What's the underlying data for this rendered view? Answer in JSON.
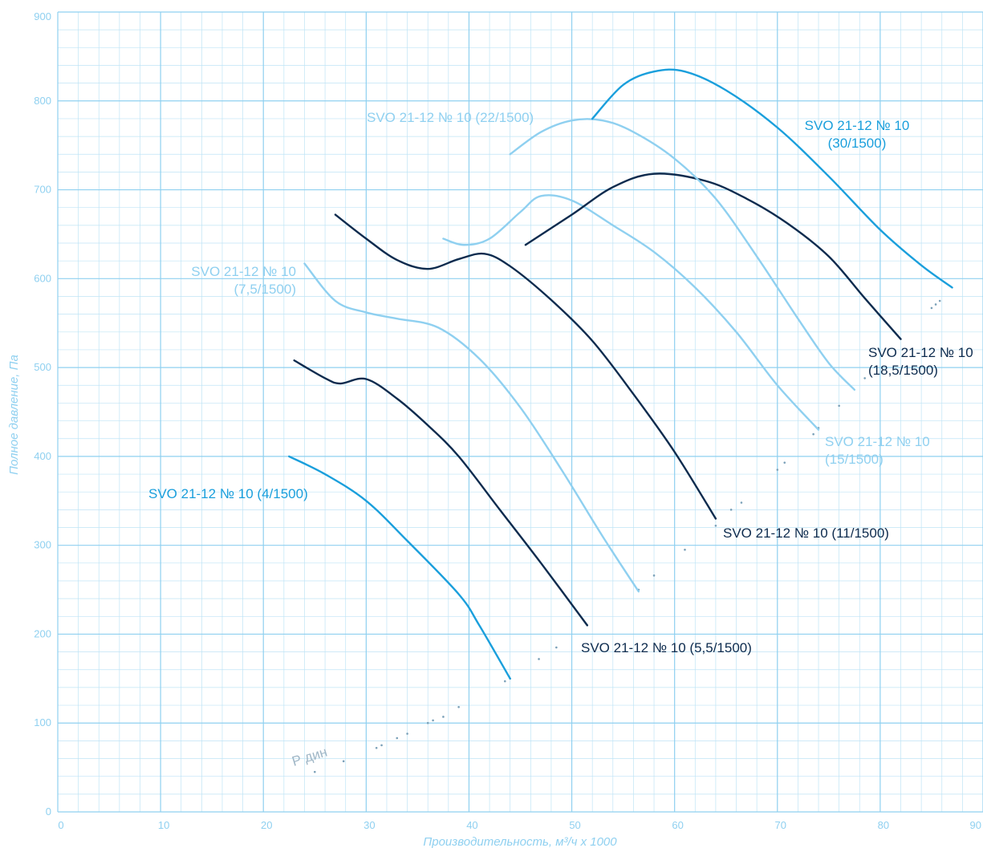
{
  "chart_data": {
    "type": "line",
    "xlabel": "Производительность, м³/ч x 1000",
    "ylabel": "Полное давление, Па",
    "xlim": [
      0,
      90
    ],
    "ylim": [
      0,
      900
    ],
    "x_ticks": [
      "0",
      "10",
      "20",
      "30",
      "40",
      "50",
      "60",
      "70",
      "80",
      "90"
    ],
    "y_ticks": [
      "0",
      "100",
      "200",
      "300",
      "400",
      "500",
      "600",
      "700",
      "800",
      "900"
    ],
    "grid": true,
    "colors": {
      "grid_major": "#8fd0f0",
      "grid_minor": "#bfe4f6",
      "axis_text": "#8fd0f0",
      "dark": "#0d2b4e",
      "medium": "#1a9fdc",
      "light": "#8fd0f0"
    },
    "series": [
      {
        "name": "SVO 21-12 № 10 (4/1500)",
        "label_lines": [
          "SVO 21-12 № 10 (4/1500)"
        ],
        "color": "medium",
        "x": [
          22.5,
          26,
          30,
          34,
          39,
          41,
          44
        ],
        "y": [
          400,
          380,
          350,
          305,
          245,
          210,
          150
        ]
      },
      {
        "name": "SVO 21-12 № 10 (5,5/1500)",
        "label_lines": [
          "SVO 21-12 № 10 (5,5/1500)"
        ],
        "color": "dark",
        "x": [
          23,
          26,
          27.5,
          30,
          33,
          36,
          39,
          43,
          47,
          51.5
        ],
        "y": [
          508,
          488,
          482,
          487,
          465,
          435,
          400,
          340,
          280,
          210
        ]
      },
      {
        "name": "SVO 21-12 № 10 (7,5/1500)",
        "label_lines": [
          "SVO 21-12 № 10",
          "(7,5/1500)"
        ],
        "color": "light",
        "x": [
          24,
          27,
          30,
          33,
          37,
          41,
          45,
          49,
          53,
          56.5
        ],
        "y": [
          617,
          575,
          562,
          555,
          545,
          510,
          455,
          385,
          310,
          248
        ]
      },
      {
        "name": "SVO 21-12 № 10 (11/1500)",
        "label_lines": [
          "SVO 21-12 № 10 (11/1500)"
        ],
        "color": "dark",
        "x": [
          27,
          30,
          33,
          36,
          39,
          41.5,
          44,
          48,
          52,
          56,
          60,
          64
        ],
        "y": [
          672,
          645,
          621,
          611,
          622,
          628,
          614,
          576,
          530,
          470,
          405,
          330
        ]
      },
      {
        "name": "SVO 21-12 № 10 (15/1500)",
        "label_lines": [
          "SVO 21-12 № 10",
          "(15/1500)"
        ],
        "color": "light",
        "x": [
          37.5,
          39.5,
          42,
          45,
          47,
          50,
          54,
          58,
          62,
          66,
          70,
          74
        ],
        "y": [
          645,
          638,
          645,
          675,
          693,
          688,
          660,
          630,
          590,
          540,
          480,
          430
        ]
      },
      {
        "name": "SVO 21-12 № 10 (18,5/1500)",
        "label_lines": [
          "SVO 21-12 № 10",
          "(18,5/1500)"
        ],
        "color": "dark",
        "x": [
          45.5,
          50,
          54,
          58,
          63,
          67,
          71,
          75,
          78.5,
          82
        ],
        "y": [
          638,
          672,
          703,
          718,
          710,
          690,
          662,
          625,
          578,
          532
        ]
      },
      {
        "name": "SVO 21-12 № 10 (22/1500)",
        "label_lines": [
          "SVO 21-12 № 10 (22/1500)"
        ],
        "color": "light",
        "x": [
          44,
          47,
          50,
          53,
          56,
          60,
          64,
          68,
          72,
          75,
          77.5
        ],
        "y": [
          740,
          765,
          778,
          778,
          765,
          735,
          690,
          625,
          555,
          505,
          475
        ]
      },
      {
        "name": "SVO 21-12 № 10 (30/1500)",
        "label_lines": [
          "SVO 21-12 № 10",
          "(30/1500)"
        ],
        "color": "medium",
        "x": [
          52,
          55,
          58,
          61,
          65,
          70,
          75,
          80,
          84,
          87
        ],
        "y": [
          780,
          818,
          833,
          833,
          812,
          770,
          715,
          655,
          615,
          590
        ]
      }
    ],
    "p_dyn": {
      "label": "Р дин",
      "points": [
        [
          25,
          45
        ],
        [
          27.8,
          57
        ],
        [
          31,
          72
        ],
        [
          31.5,
          75
        ],
        [
          33,
          83
        ],
        [
          34,
          88
        ],
        [
          36,
          100
        ],
        [
          36.5,
          103
        ],
        [
          37.5,
          107
        ],
        [
          39,
          118
        ],
        [
          43.5,
          147
        ],
        [
          44,
          150
        ],
        [
          46.8,
          172
        ],
        [
          48.5,
          185
        ],
        [
          51.5,
          210
        ],
        [
          56.5,
          250
        ],
        [
          58,
          266
        ],
        [
          61,
          295
        ],
        [
          64,
          322
        ],
        [
          65.5,
          340
        ],
        [
          66.5,
          348
        ],
        [
          70,
          385
        ],
        [
          70.7,
          393
        ],
        [
          73.5,
          425
        ],
        [
          74,
          432
        ],
        [
          76,
          457
        ],
        [
          78.5,
          488
        ],
        [
          85,
          567
        ],
        [
          85.4,
          571
        ],
        [
          85.8,
          575
        ]
      ]
    }
  }
}
